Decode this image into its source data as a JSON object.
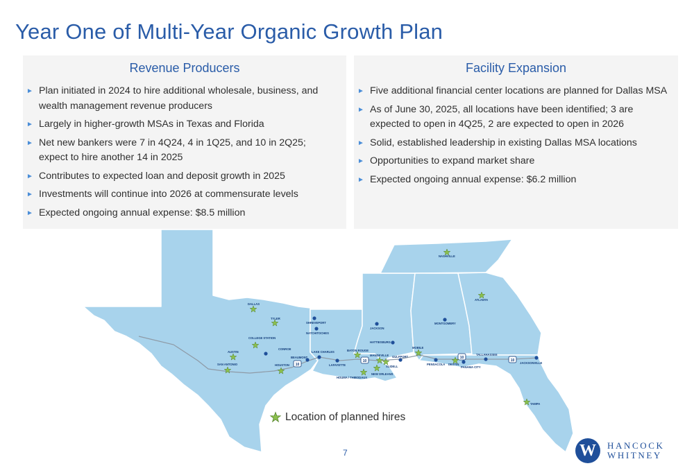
{
  "page": {
    "title": "Year One of Multi-Year Organic Growth Plan",
    "page_number": "7"
  },
  "revenue_producers": {
    "heading": "Revenue Producers",
    "bullets": [
      "Plan initiated in 2024 to hire additional wholesale, business, and wealth management revenue producers",
      "Largely in higher-growth MSAs in Texas and Florida",
      "Net new bankers were 7 in 4Q24, 4 in 1Q25, and 10 in 2Q25; expect to hire another 14 in 2025",
      "Contributes to expected loan and deposit growth in 2025",
      "Investments will continue into 2026 at commensurate levels",
      "Expected ongoing annual expense: $8.5 million"
    ]
  },
  "facility_expansion": {
    "heading": "Facility Expansion",
    "bullets": [
      "Five additional financial center locations are planned for Dallas MSA",
      "As of June 30, 2025, all locations have been identified; 3 are expected to open in 4Q25, 2 are expected to open in 2026",
      "Solid, established leadership in existing Dallas MSA locations",
      "Opportunities to expand market share",
      "Expected ongoing annual expense: $6.2 million"
    ]
  },
  "map": {
    "legend": "Location of planned hires",
    "route_label": "10",
    "city_labels": {
      "dallas": "DALLAS",
      "tyler": "TYLER",
      "college_station": "COLLEGE STATION",
      "austin": "AUSTIN",
      "san_antonio": "SAN ANTONIO",
      "conroe": "CONROE",
      "houston": "HOUSTON",
      "beaumont": "BEAUMONT",
      "lake_charles": "LAKE CHARLES",
      "lafayette": "LAFAYETTE",
      "shreveport": "SHREVEPORT",
      "natchitoches": "NATCHITOCHES",
      "baton_rouge": "BATON ROUGE",
      "houma": "HOUMA / THIBODAUX",
      "nashville": "NASHVILLE",
      "jackson": "JACKSON",
      "hattiesburg": "HATTIESBURG",
      "mandeville": "MANDEVILLE",
      "slidell": "SLIDELL",
      "gulfport": "GULFPORT",
      "new_orleans": "NEW ORLEANS",
      "mobile": "MOBILE",
      "pensacola": "PENSACOLA",
      "destin": "DESTIN",
      "panama_city": "PANAMA CITY",
      "montgomery": "MONTGOMERY",
      "atlanta": "ATLANTA",
      "tallahassee": "TALLAHASSEE",
      "jacksonville": "JACKSONVILLE",
      "tampa": "TAMPA"
    }
  },
  "logo": {
    "mark": "W",
    "line1": "HANCOCK",
    "line2": "WHITNEY"
  },
  "colors": {
    "title": "#2a5ca8",
    "panel_bg": "#f4f4f4",
    "map_fill": "#a8d3ec",
    "star": "#8cc04e",
    "dot": "#1f4f9a"
  }
}
